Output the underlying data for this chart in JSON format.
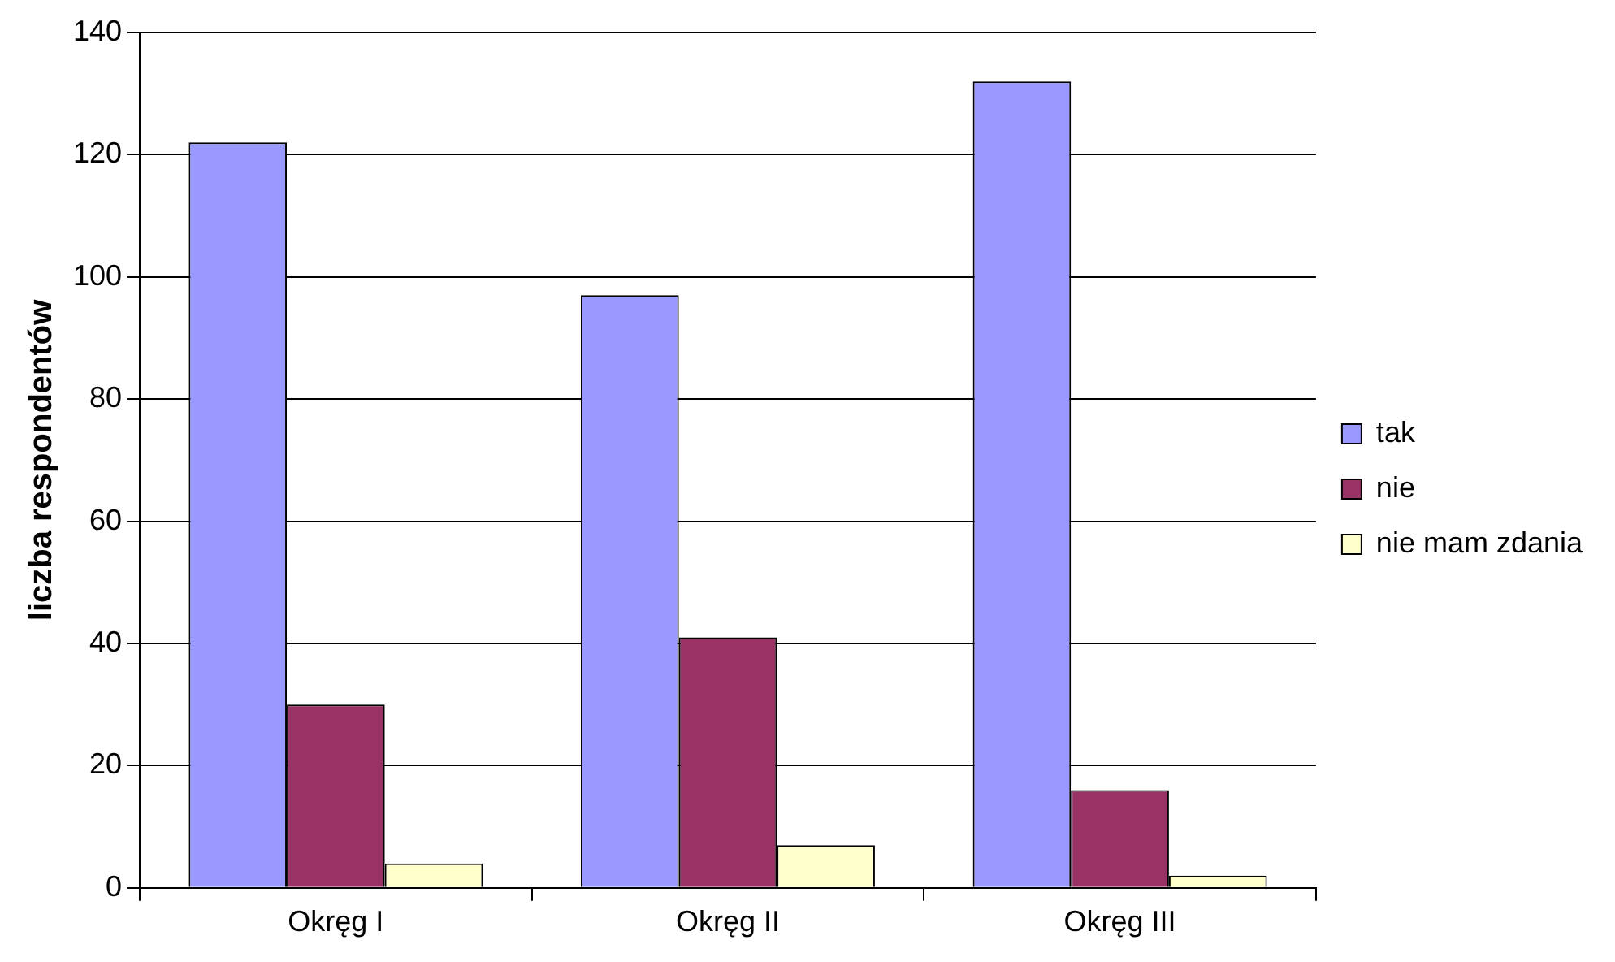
{
  "chart_data": {
    "type": "bar",
    "ylabel": "liczba respondentów",
    "categories": [
      "Okręg I",
      "Okręg II",
      "Okręg III"
    ],
    "series": [
      {
        "name": "tak",
        "color": "#9999ff",
        "values": [
          122,
          97,
          132
        ]
      },
      {
        "name": "nie",
        "color": "#993366",
        "values": [
          30,
          41,
          16
        ]
      },
      {
        "name": "nie mam zdania",
        "color": "#ffffcc",
        "values": [
          4,
          7,
          2
        ]
      }
    ],
    "ylim": [
      0,
      140
    ],
    "yticks": [
      0,
      20,
      40,
      60,
      80,
      100,
      120,
      140
    ],
    "grid": "y",
    "legend": "right"
  }
}
